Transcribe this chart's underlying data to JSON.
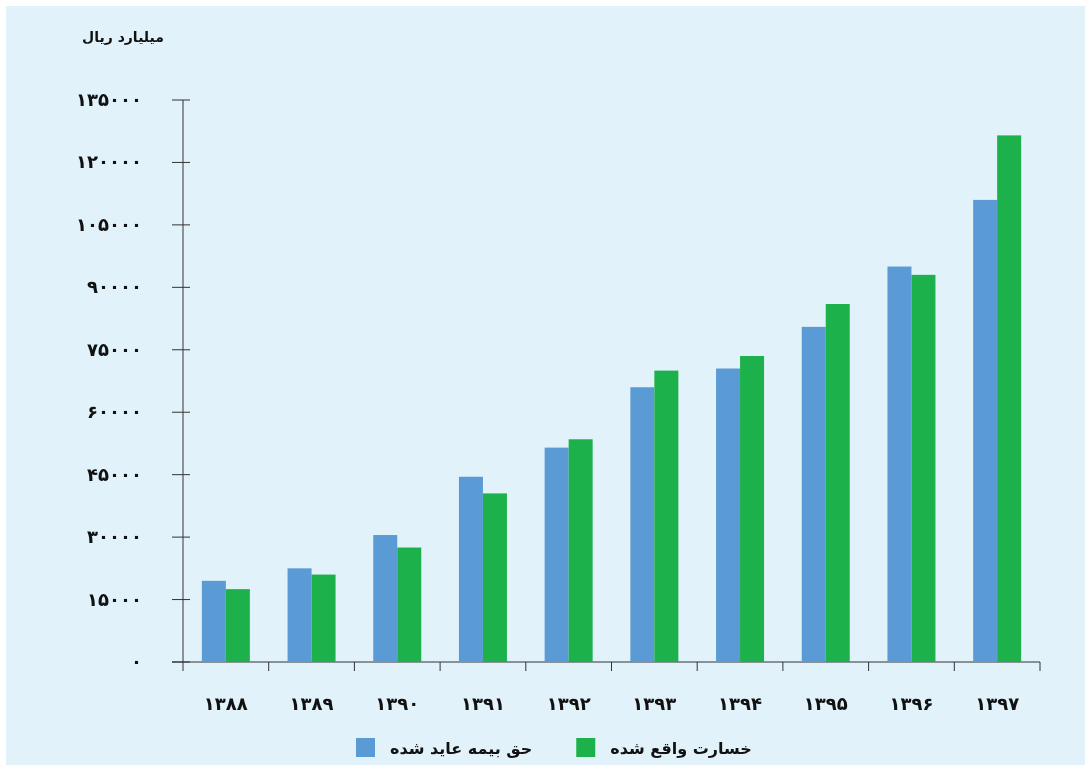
{
  "chart_data": {
    "type": "bar",
    "ylabel": "میلیارد ریال",
    "categories": [
      "۱۳۸۸",
      "۱۳۸۹",
      "۱۳۹۰",
      "۱۳۹۱",
      "۱۳۹۲",
      "۱۳۹۳",
      "۱۳۹۴",
      "۱۳۹۵",
      "۱۳۹۶",
      "۱۳۹۷"
    ],
    "series": [
      {
        "name": "حق بیمه عاید شده",
        "color": "#5b9bd5",
        "values": [
          19500,
          22500,
          30500,
          44500,
          51500,
          66000,
          70500,
          80500,
          95000,
          111000
        ]
      },
      {
        "name": "خسارت واقع شده",
        "color": "#1db14b",
        "values": [
          17500,
          21000,
          27500,
          40500,
          53500,
          70000,
          73500,
          86000,
          93000,
          126500
        ]
      }
    ],
    "ylim": [
      0,
      135000
    ],
    "yticks": [
      {
        "value": 0,
        "label": "۰"
      },
      {
        "value": 15000,
        "label": "۱۵۰۰۰"
      },
      {
        "value": 30000,
        "label": "۳۰۰۰۰"
      },
      {
        "value": 45000,
        "label": "۴۵۰۰۰"
      },
      {
        "value": 60000,
        "label": "۶۰۰۰۰"
      },
      {
        "value": 75000,
        "label": "۷۵۰۰۰"
      },
      {
        "value": 90000,
        "label": "۹۰۰۰۰"
      },
      {
        "value": 105000,
        "label": "۱۰۵۰۰۰"
      },
      {
        "value": 120000,
        "label": "۱۲۰۰۰۰"
      },
      {
        "value": 135000,
        "label": "۱۳۵۰۰۰"
      }
    ],
    "grid": false,
    "legend": "bottom"
  }
}
